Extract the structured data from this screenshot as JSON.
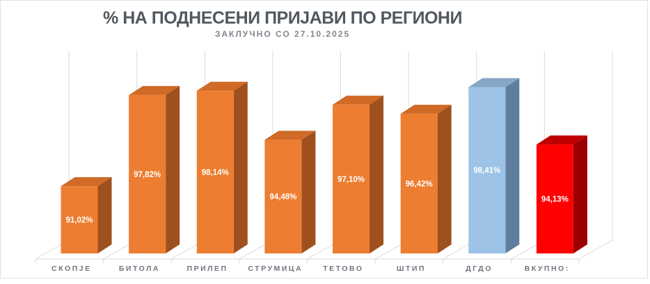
{
  "window": {
    "background": "#FFFFFF",
    "frame_border_color": "#E0E0E0"
  },
  "header": {
    "title": "% НА ПОДНЕСЕНИ ПРИЈАВИ ПО РЕГИОНИ",
    "subtitle": "ЗАКЛУЧНО СО 27.10.2025",
    "title_color": "#51585F",
    "subtitle_color": "#7F878F"
  },
  "chart_data": {
    "type": "bar",
    "variant": "3d-column",
    "title": "% НА ПОДНЕСЕНИ ПРИЈАВИ ПО РЕГИОНИ",
    "subtitle": "ЗАКЛУЧНО СО 27.10.2025",
    "categories": [
      "СКОПЈЕ",
      "БИТОЛА",
      "ПРИЛЕП",
      "СТРУМИЦА",
      "ТЕТОВО",
      "ШТИП",
      "ДГДО",
      "ВКУПНО:"
    ],
    "values": [
      91.02,
      97.82,
      98.14,
      94.48,
      97.1,
      96.42,
      98.41,
      94.13
    ],
    "labels": [
      "91,02%",
      "97,82%",
      "98,14%",
      "94,48%",
      "97,10%",
      "96,42%",
      "98,41%",
      "94,13%"
    ],
    "ylim": [
      86,
      100
    ],
    "xlabel": "",
    "ylabel": "",
    "legend": "none",
    "gridlines": "vertical-category-only",
    "gridline_color": "#D9D9D9",
    "data_label_color": "#FFFFFF",
    "category_label_color": "#6E757D",
    "bar_palette": [
      "orange",
      "orange",
      "orange",
      "orange",
      "orange",
      "orange",
      "blue",
      "red"
    ],
    "colors": {
      "orange": {
        "front": "#ED7D31",
        "top": "#D06A26",
        "side": "#9E501E"
      },
      "blue": {
        "front": "#9DC3E6",
        "top": "#87A7C8",
        "side": "#5F7E9D"
      },
      "red": {
        "front": "#FE0000",
        "top": "#C00000",
        "side": "#9B0000"
      }
    }
  }
}
